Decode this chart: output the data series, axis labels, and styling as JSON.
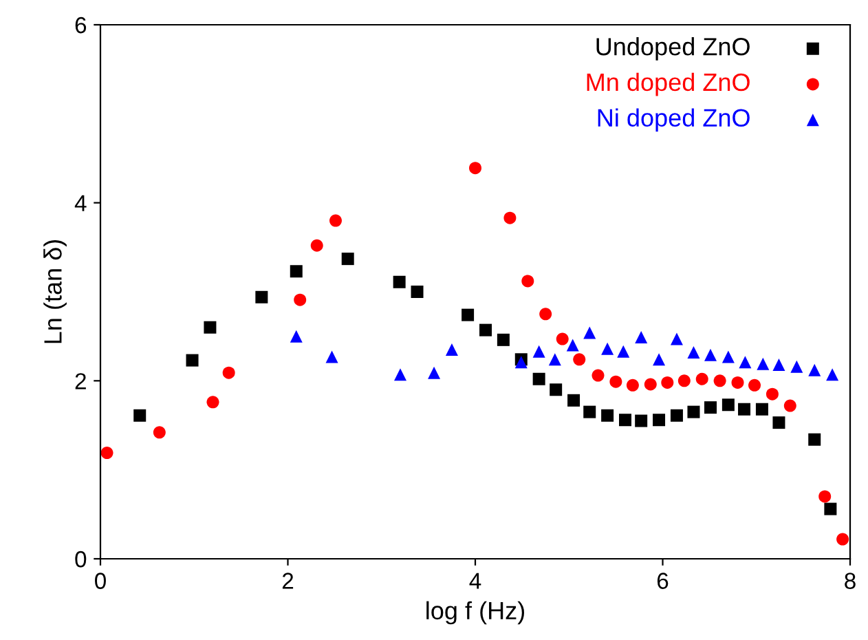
{
  "chart_data": {
    "type": "scatter",
    "xlabel": "log f (Hz)",
    "ylabel": "Ln (tan δ)",
    "xlim": [
      0,
      8
    ],
    "ylim": [
      0,
      6
    ],
    "xticks": [
      0,
      2,
      4,
      6,
      8
    ],
    "yticks": [
      0,
      2,
      4,
      6
    ],
    "grid": false,
    "legend": "top right",
    "series": [
      {
        "name": "Undoped ZnO",
        "color": "#000000",
        "marker": "square",
        "x": [
          0.42,
          0.98,
          1.17,
          1.72,
          2.09,
          2.64,
          3.19,
          3.38,
          3.92,
          4.11,
          4.3,
          4.49,
          4.68,
          4.86,
          5.05,
          5.22,
          5.41,
          5.6,
          5.77,
          5.96,
          6.15,
          6.33,
          6.51,
          6.7,
          6.87,
          7.06,
          7.24,
          7.62,
          7.79
        ],
        "values": [
          1.61,
          2.23,
          2.6,
          2.94,
          3.23,
          3.37,
          3.11,
          3.0,
          2.74,
          2.57,
          2.46,
          2.24,
          2.02,
          1.9,
          1.78,
          1.65,
          1.61,
          1.56,
          1.55,
          1.56,
          1.61,
          1.65,
          1.7,
          1.73,
          1.68,
          1.68,
          1.53,
          1.34,
          0.56
        ]
      },
      {
        "name": "Mn doped ZnO",
        "color": "#ff0000",
        "marker": "circle",
        "x": [
          0.07,
          0.63,
          1.2,
          1.37,
          2.13,
          2.31,
          2.51,
          4.0,
          4.37,
          4.56,
          4.75,
          4.93,
          5.11,
          5.31,
          5.5,
          5.68,
          5.87,
          6.05,
          6.23,
          6.42,
          6.61,
          6.8,
          6.98,
          7.17,
          7.36,
          7.73,
          7.92
        ],
        "values": [
          1.19,
          1.42,
          1.76,
          2.09,
          2.91,
          3.52,
          3.8,
          4.39,
          3.83,
          3.12,
          2.75,
          2.47,
          2.24,
          2.06,
          1.99,
          1.95,
          1.96,
          1.98,
          2.0,
          2.02,
          2.0,
          1.98,
          1.95,
          1.85,
          1.72,
          0.7,
          0.22
        ]
      },
      {
        "name": "Ni doped ZnO",
        "color": "#0000ff",
        "marker": "triangle",
        "x": [
          2.09,
          2.47,
          3.2,
          3.56,
          3.75,
          4.49,
          4.68,
          4.85,
          5.04,
          5.22,
          5.41,
          5.58,
          5.77,
          5.96,
          6.15,
          6.33,
          6.51,
          6.7,
          6.88,
          7.07,
          7.24,
          7.43,
          7.62,
          7.81
        ],
        "values": [
          2.5,
          2.27,
          2.07,
          2.09,
          2.35,
          2.21,
          2.33,
          2.24,
          2.4,
          2.54,
          2.36,
          2.33,
          2.49,
          2.24,
          2.47,
          2.32,
          2.29,
          2.27,
          2.21,
          2.19,
          2.18,
          2.16,
          2.12,
          2.07
        ]
      }
    ]
  }
}
